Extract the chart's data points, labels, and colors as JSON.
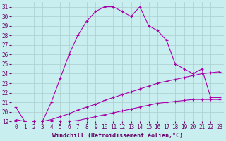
{
  "xlabel": "Windchill (Refroidissement éolien,°C)",
  "bg_color": "#c8eef0",
  "grid_color": "#aacccc",
  "line_color": "#aa00aa",
  "xlim": [
    -0.5,
    23.5
  ],
  "ylim": [
    19,
    31.5
  ],
  "xticks": [
    0,
    1,
    2,
    3,
    4,
    5,
    6,
    7,
    8,
    9,
    10,
    11,
    12,
    13,
    14,
    15,
    16,
    17,
    18,
    19,
    20,
    21,
    22,
    23
  ],
  "yticks": [
    19,
    20,
    21,
    22,
    23,
    24,
    25,
    26,
    27,
    28,
    29,
    30,
    31
  ],
  "curve1_x": [
    0,
    1,
    2,
    3,
    4,
    5,
    6,
    7,
    8,
    9,
    10,
    11,
    12,
    13,
    14,
    15,
    16,
    17,
    18,
    19,
    20,
    21,
    22,
    23
  ],
  "curve1_y": [
    20.5,
    19.0,
    19.0,
    19.0,
    21.0,
    23.5,
    26.0,
    28.0,
    29.5,
    30.5,
    31.0,
    31.0,
    30.5,
    30.0,
    31.0,
    29.0,
    28.5,
    27.5,
    25.0,
    24.5,
    24.0,
    24.5,
    21.5,
    21.5
  ],
  "curve2_x": [
    0,
    1,
    2,
    3,
    4,
    5,
    6,
    7,
    8,
    9,
    10,
    11,
    12,
    13,
    14,
    15,
    16,
    17,
    18,
    19,
    20,
    21,
    22,
    23
  ],
  "curve2_y": [
    19.2,
    19.0,
    19.0,
    19.0,
    19.2,
    19.5,
    19.8,
    20.2,
    20.5,
    20.8,
    21.2,
    21.5,
    21.8,
    22.1,
    22.4,
    22.7,
    23.0,
    23.2,
    23.4,
    23.6,
    23.8,
    24.0,
    24.1,
    24.2
  ],
  "curve3_x": [
    0,
    1,
    2,
    3,
    4,
    5,
    6,
    7,
    8,
    9,
    10,
    11,
    12,
    13,
    14,
    15,
    16,
    17,
    18,
    19,
    20,
    21,
    22,
    23
  ],
  "curve3_y": [
    19.0,
    19.0,
    19.0,
    19.0,
    19.0,
    19.0,
    19.0,
    19.1,
    19.3,
    19.5,
    19.7,
    19.9,
    20.1,
    20.3,
    20.5,
    20.7,
    20.9,
    21.0,
    21.1,
    21.2,
    21.3,
    21.3,
    21.3,
    21.3
  ]
}
